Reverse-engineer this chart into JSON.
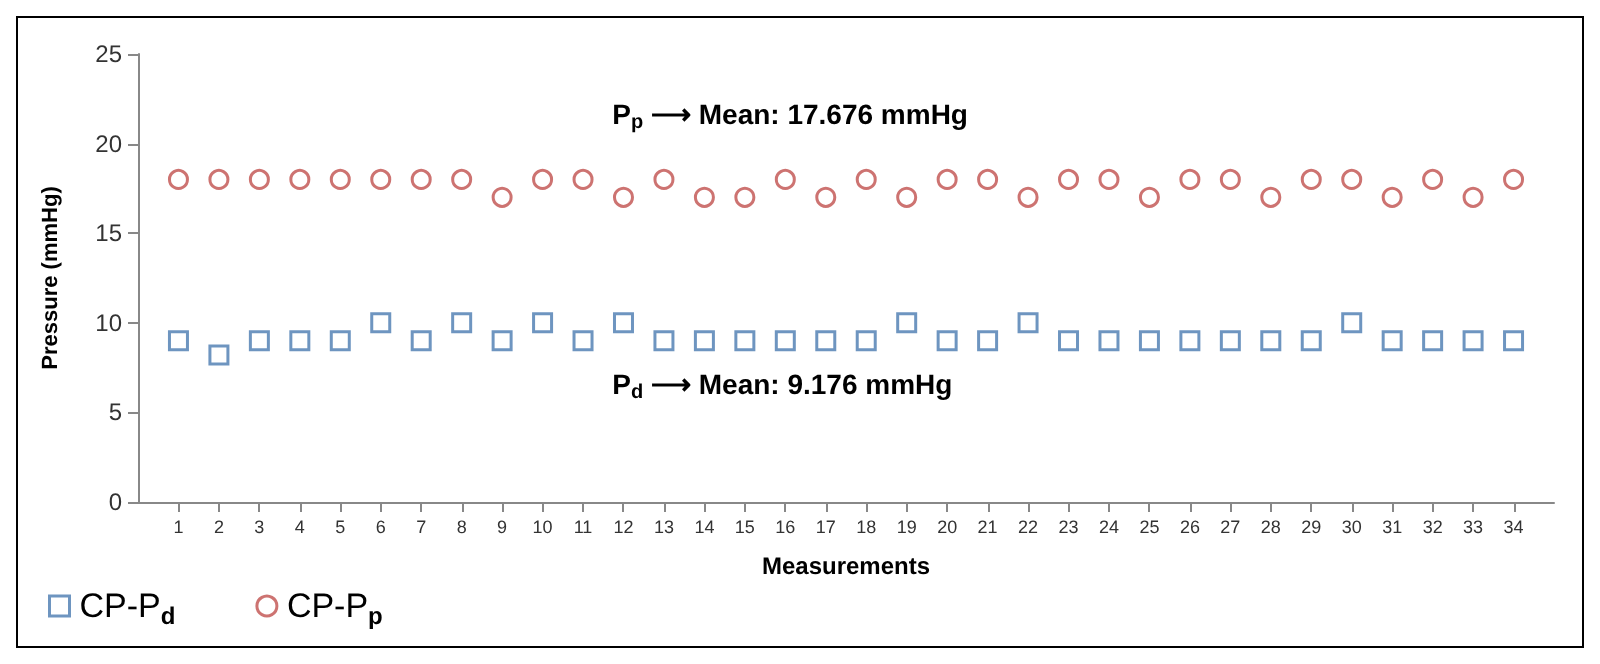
{
  "chart_data": {
    "type": "scatter",
    "xlabel": "Measurements",
    "ylabel": "Pressure (mmHg)",
    "x": [
      1,
      2,
      3,
      4,
      5,
      6,
      7,
      8,
      9,
      10,
      11,
      12,
      13,
      14,
      15,
      16,
      17,
      18,
      19,
      20,
      21,
      22,
      23,
      24,
      25,
      26,
      27,
      28,
      29,
      30,
      31,
      32,
      33,
      34
    ],
    "xlim": [
      0,
      35
    ],
    "xticks": [
      1,
      2,
      3,
      4,
      5,
      6,
      7,
      8,
      9,
      10,
      11,
      12,
      13,
      14,
      15,
      16,
      17,
      18,
      19,
      20,
      21,
      22,
      23,
      24,
      25,
      26,
      27,
      28,
      29,
      30,
      31,
      32,
      33,
      34
    ],
    "series": [
      {
        "name": "CP-P$_{d}$",
        "color": "#4a7ab0",
        "marker": "square",
        "values": [
          9,
          8.2,
          9,
          9,
          9,
          10,
          9,
          10,
          9,
          10,
          9,
          10,
          9,
          9,
          9,
          9,
          9,
          9,
          10,
          9,
          9,
          10,
          9,
          9,
          9,
          9,
          9,
          9,
          9,
          10,
          9,
          9,
          9,
          9
        ]
      },
      {
        "name": "CP-P$_{p}$",
        "color": "#c0504d",
        "marker": "circle",
        "values": [
          18,
          18,
          18,
          18,
          18,
          18,
          18,
          18,
          17,
          18,
          18,
          17,
          18,
          17,
          17,
          18,
          17,
          18,
          17,
          18,
          18,
          17,
          18,
          18,
          17,
          18,
          18,
          17,
          18,
          18,
          17,
          18,
          17,
          18
        ]
      }
    ],
    "ylim": [
      0,
      25
    ],
    "yticks": [
      0,
      5,
      10,
      15,
      20,
      25
    ],
    "grid": false,
    "legend": "bottom left",
    "annotations": [
      "P$_{p}$ ⟶ Mean: 17.676 mmHg",
      "P$_{d}$ ⟶ Mean: 9.176 mmHg"
    ]
  }
}
